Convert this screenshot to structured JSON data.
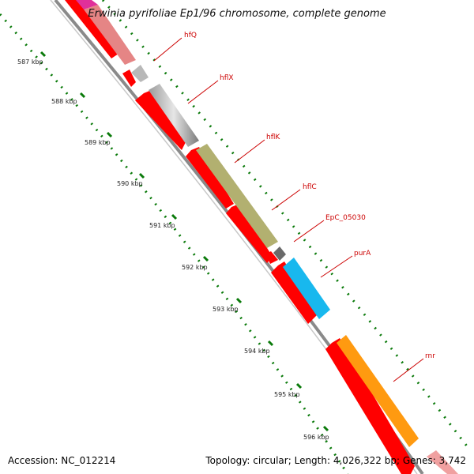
{
  "title": "Erwinia pyrifoliae Ep1/96 chromosome, complete genome",
  "footer": {
    "accession_label": "Accession:",
    "accession_value": "NC_012214",
    "topology_label": "Topology:",
    "topology_value": "circular",
    "length_label": "Length:",
    "length_value": "4,026,322 bp",
    "genes_label": "Genes:",
    "genes_value": "3,742"
  },
  "ticks": [
    "587 kbp",
    "588 kbp",
    "589 kbp",
    "590 kbp",
    "591 kbp",
    "592 kbp",
    "593 kbp",
    "594 kbp",
    "595 kbp",
    "596 kbp"
  ],
  "genes": [
    {
      "label": "hfQ"
    },
    {
      "label": "hflX"
    },
    {
      "label": "hflK"
    },
    {
      "label": "hflC"
    },
    {
      "label": "EpC_05030"
    },
    {
      "label": "purA"
    },
    {
      "label": "rnr"
    }
  ],
  "colors": {
    "cds": "#ff0000",
    "backbone": "#8a8a8a",
    "tick": "#0a7a0a",
    "label": "#cc0000",
    "hfQ": "#e08080",
    "hfQ_top": "#e0309a",
    "hflX": "#c0c0c0",
    "hflK": "#b2b070",
    "hflC": "#707070",
    "purA": "#18b8ee",
    "rnr": "#ff9a10"
  }
}
